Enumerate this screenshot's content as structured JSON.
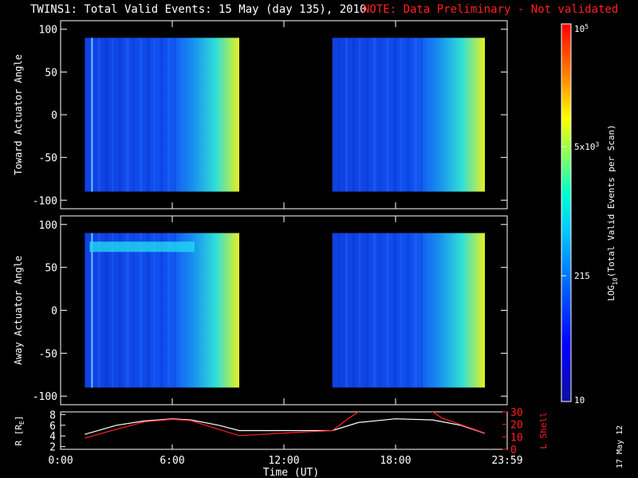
{
  "title": "TWINS1: Total Valid Events: 15 May (day 135), 2010",
  "note": "NOTE: Data Preliminary - Not validated",
  "stamp": "17 May 12",
  "colors": {
    "note": "#ff2020",
    "r_line": "#ffffff",
    "lshell_line": "#ff2020"
  },
  "chart_data": [
    {
      "type": "heatmap",
      "ylabel": "Toward Actuator Angle",
      "ylim": [
        -110,
        110
      ],
      "yticks": [
        "100",
        "50",
        "0",
        "-50",
        "-100"
      ],
      "x_unit": "hours UT",
      "data_intervals": [
        [
          1.3,
          9.6
        ],
        [
          14.6,
          22.8
        ]
      ],
      "angle_range": [
        -90,
        90
      ]
    },
    {
      "type": "heatmap",
      "ylabel": "Away Actuator Angle",
      "ylim": [
        -110,
        110
      ],
      "yticks": [
        "100",
        "50",
        "0",
        "-50",
        "-100"
      ],
      "x_unit": "hours UT",
      "data_intervals": [
        [
          1.3,
          9.6
        ],
        [
          14.6,
          22.8
        ]
      ],
      "angle_range": [
        -90,
        90
      ]
    },
    {
      "type": "line",
      "xlabel": "Time (UT)",
      "xticks": [
        "0:00",
        "6:00",
        "12:00",
        "18:00",
        "23:59"
      ],
      "xlim": [
        0,
        24
      ],
      "ylabel": "R [R",
      "ylabel_sub": "E",
      "ylabel_end": "]",
      "yticks": [
        "8",
        "6",
        "4",
        "2"
      ],
      "ylim": [
        1.5,
        8.5
      ],
      "y2label": "L Shell",
      "y2ticks": [
        "30",
        "20",
        "10",
        "0"
      ],
      "y2lim": [
        0,
        30
      ],
      "series": [
        {
          "name": "R",
          "axis": "left",
          "x": [
            1.3,
            3,
            4.5,
            6,
            7,
            8.5,
            9.6,
            12,
            14.6,
            16,
            18,
            20,
            21.5,
            22.8
          ],
          "y": [
            4.3,
            6.0,
            6.8,
            7.2,
            7.0,
            6.0,
            5.0,
            5.0,
            5.0,
            6.5,
            7.2,
            7.0,
            6.0,
            4.5
          ]
        },
        {
          "name": "L Shell",
          "axis": "right",
          "x": [
            1.3,
            3,
            4.5,
            6,
            7,
            8.5,
            9.6,
            12,
            14.6,
            15.5,
            16.5,
            19.5,
            20.5,
            22.8
          ],
          "y": [
            9,
            16,
            22,
            24,
            23,
            16,
            11,
            13,
            15,
            25,
            35,
            35,
            25,
            13
          ]
        }
      ]
    }
  ],
  "colorbar": {
    "label": "LOG",
    "label_sub": "10",
    "label_end": "(Total Valid Events per Scan)",
    "ticks": [
      {
        "value": 5,
        "base": "10",
        "exp": "5"
      },
      {
        "value": 3.699,
        "base": "5x10",
        "exp": "3"
      },
      {
        "value": 2.332,
        "base": "215",
        "exp": ""
      },
      {
        "value": 1,
        "base": "10",
        "exp": ""
      }
    ],
    "range": [
      1,
      5
    ]
  }
}
